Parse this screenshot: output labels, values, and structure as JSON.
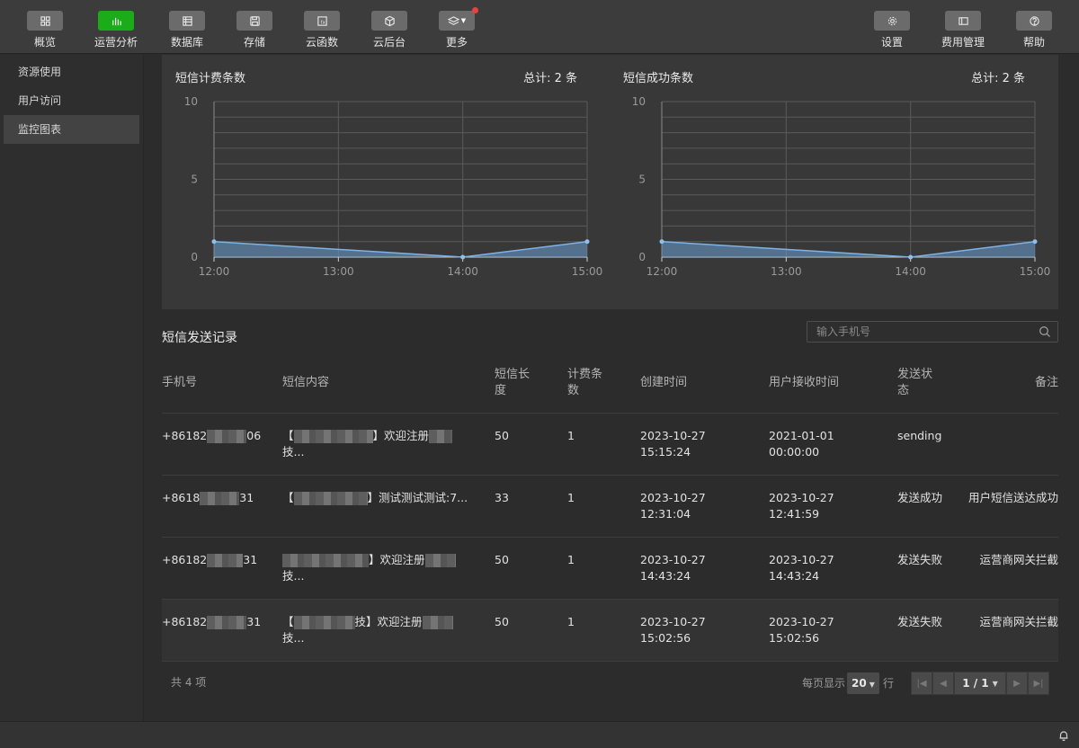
{
  "toolbar": {
    "items": [
      {
        "label": "概览",
        "icon": "grid-icon",
        "active": false
      },
      {
        "label": "运营分析",
        "icon": "bar-chart-icon",
        "active": true
      },
      {
        "label": "数据库",
        "icon": "database-icon",
        "active": false
      },
      {
        "label": "存储",
        "icon": "save-icon",
        "active": false
      },
      {
        "label": "云函数",
        "icon": "function-icon",
        "active": false
      },
      {
        "label": "云后台",
        "icon": "cube-icon",
        "active": false
      },
      {
        "label": "更多",
        "icon": "layers-icon",
        "active": false
      }
    ],
    "right_items": [
      {
        "label": "设置",
        "icon": "gear-icon"
      },
      {
        "label": "费用管理",
        "icon": "wallet-icon"
      },
      {
        "label": "帮助",
        "icon": "help-icon"
      }
    ]
  },
  "sidebar": {
    "items": [
      {
        "label": "资源使用",
        "active": false
      },
      {
        "label": "用户访问",
        "active": false
      },
      {
        "label": "监控图表",
        "active": true
      }
    ]
  },
  "charts": {
    "billing": {
      "title": "短信计费条数",
      "total": "总计: 2 条"
    },
    "success": {
      "title": "短信成功条数",
      "total": "总计: 2 条"
    }
  },
  "chart_data": [
    {
      "type": "area",
      "title": "短信计费条数",
      "x": [
        "12:00",
        "13:00",
        "14:00",
        "15:00"
      ],
      "series": [
        {
          "x": [
            "12:00",
            "14:00",
            "15:00"
          ],
          "values": [
            1,
            0,
            1
          ]
        }
      ],
      "yticks": [
        0,
        5,
        10
      ],
      "ylim": [
        0,
        10
      ],
      "grid": true,
      "color": "#6a9fd4"
    },
    {
      "type": "area",
      "title": "短信成功条数",
      "x": [
        "12:00",
        "13:00",
        "14:00",
        "15:00"
      ],
      "series": [
        {
          "x": [
            "12:00",
            "14:00",
            "15:00"
          ],
          "values": [
            1,
            0,
            1
          ]
        }
      ],
      "yticks": [
        0,
        5,
        10
      ],
      "ylim": [
        0,
        10
      ],
      "grid": true,
      "color": "#6a9fd4"
    }
  ],
  "records": {
    "title": "短信发送记录",
    "search_placeholder": "输入手机号",
    "columns": {
      "phone": "手机号",
      "content": "短信内容",
      "length": "短信长度",
      "fee_count": "计费条数",
      "created": "创建时间",
      "received": "用户接收时间",
      "status": "发送状态",
      "note": "备注"
    },
    "rows": [
      {
        "phone_a": "+86182",
        "phone_b": "06",
        "content_a": "【",
        "content_b": "】欢迎注册",
        "content_c": "技...",
        "length": "50",
        "fee": "1",
        "created_date": "2023-10-27",
        "created_time": "15:15:24",
        "recv_date": "2021-01-01",
        "recv_time": "00:00:00",
        "status": "sending",
        "note": ""
      },
      {
        "phone_a": "+8618",
        "phone_b": "31",
        "content_a": "【",
        "content_b": "】测试测试测试:7...",
        "content_c": "",
        "length": "33",
        "fee": "1",
        "created_date": "2023-10-27",
        "created_time": "12:31:04",
        "recv_date": "2023-10-27",
        "recv_time": "12:41:59",
        "status": "发送成功",
        "note": "用户短信送达成功"
      },
      {
        "phone_a": "+86182",
        "phone_b": "31",
        "content_a": "",
        "content_b": "】欢迎注册",
        "content_c": "技...",
        "length": "50",
        "fee": "1",
        "created_date": "2023-10-27",
        "created_time": "14:43:24",
        "recv_date": "2023-10-27",
        "recv_time": "14:43:24",
        "status": "发送失败",
        "note": "运营商网关拦截"
      },
      {
        "phone_a": "+86182",
        "phone_b": "31",
        "content_a": "【",
        "content_b": "技】欢迎注册",
        "content_c": "技...",
        "length": "50",
        "fee": "1",
        "created_date": "2023-10-27",
        "created_time": "15:02:56",
        "recv_date": "2023-10-27",
        "recv_time": "15:02:56",
        "status": "发送失败",
        "note": "运营商网关拦截"
      }
    ]
  },
  "pagination": {
    "total": "共 4 项",
    "per_page_label": "每页显示",
    "per_page": "20",
    "row_label": "行",
    "page": "1 / 1"
  }
}
